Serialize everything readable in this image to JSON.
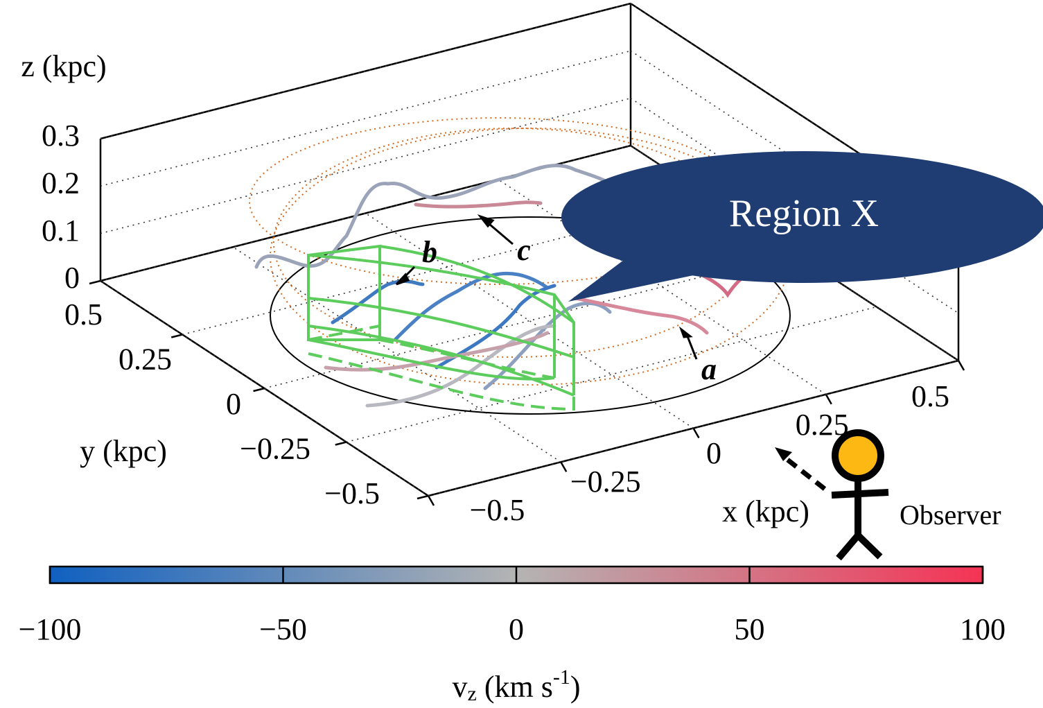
{
  "chart_data": {
    "type": "line3d",
    "xlabel": "x (kpc)",
    "ylabel": "y (kpc)",
    "zlabel": "z (kpc)",
    "xlim": [
      -0.5,
      0.5
    ],
    "ylim": [
      -0.5,
      0.5
    ],
    "zlim": [
      0,
      0.3
    ],
    "xticks": [
      {
        "value": -0.5,
        "label": "−0.5"
      },
      {
        "value": -0.25,
        "label": "−0.25"
      },
      0,
      0.25,
      0.5
    ],
    "yticks": [
      {
        "value": -0.5,
        "label": "−0.5"
      },
      {
        "value": -0.25,
        "label": "−0.25"
      },
      0,
      0.25,
      0.5
    ],
    "zticks": [
      0,
      0.1,
      0.2,
      0.3
    ],
    "grid": true,
    "annotations": {
      "a": "a",
      "b": "b",
      "c": "c",
      "region": "Region X",
      "observer": "Observer"
    },
    "colorbar": {
      "label": {
        "base": "v",
        "sub": "z",
        "unit": " (km s",
        "sup": "-1",
        "close": ")"
      },
      "lim": [
        -100,
        100
      ],
      "ticks": [
        {
          "value": -100,
          "label": "−100"
        },
        {
          "value": -50,
          "label": "−50"
        },
        0,
        50,
        100
      ],
      "colors": [
        "#1060c0",
        "#b4b4b4",
        "#f53355"
      ]
    }
  }
}
